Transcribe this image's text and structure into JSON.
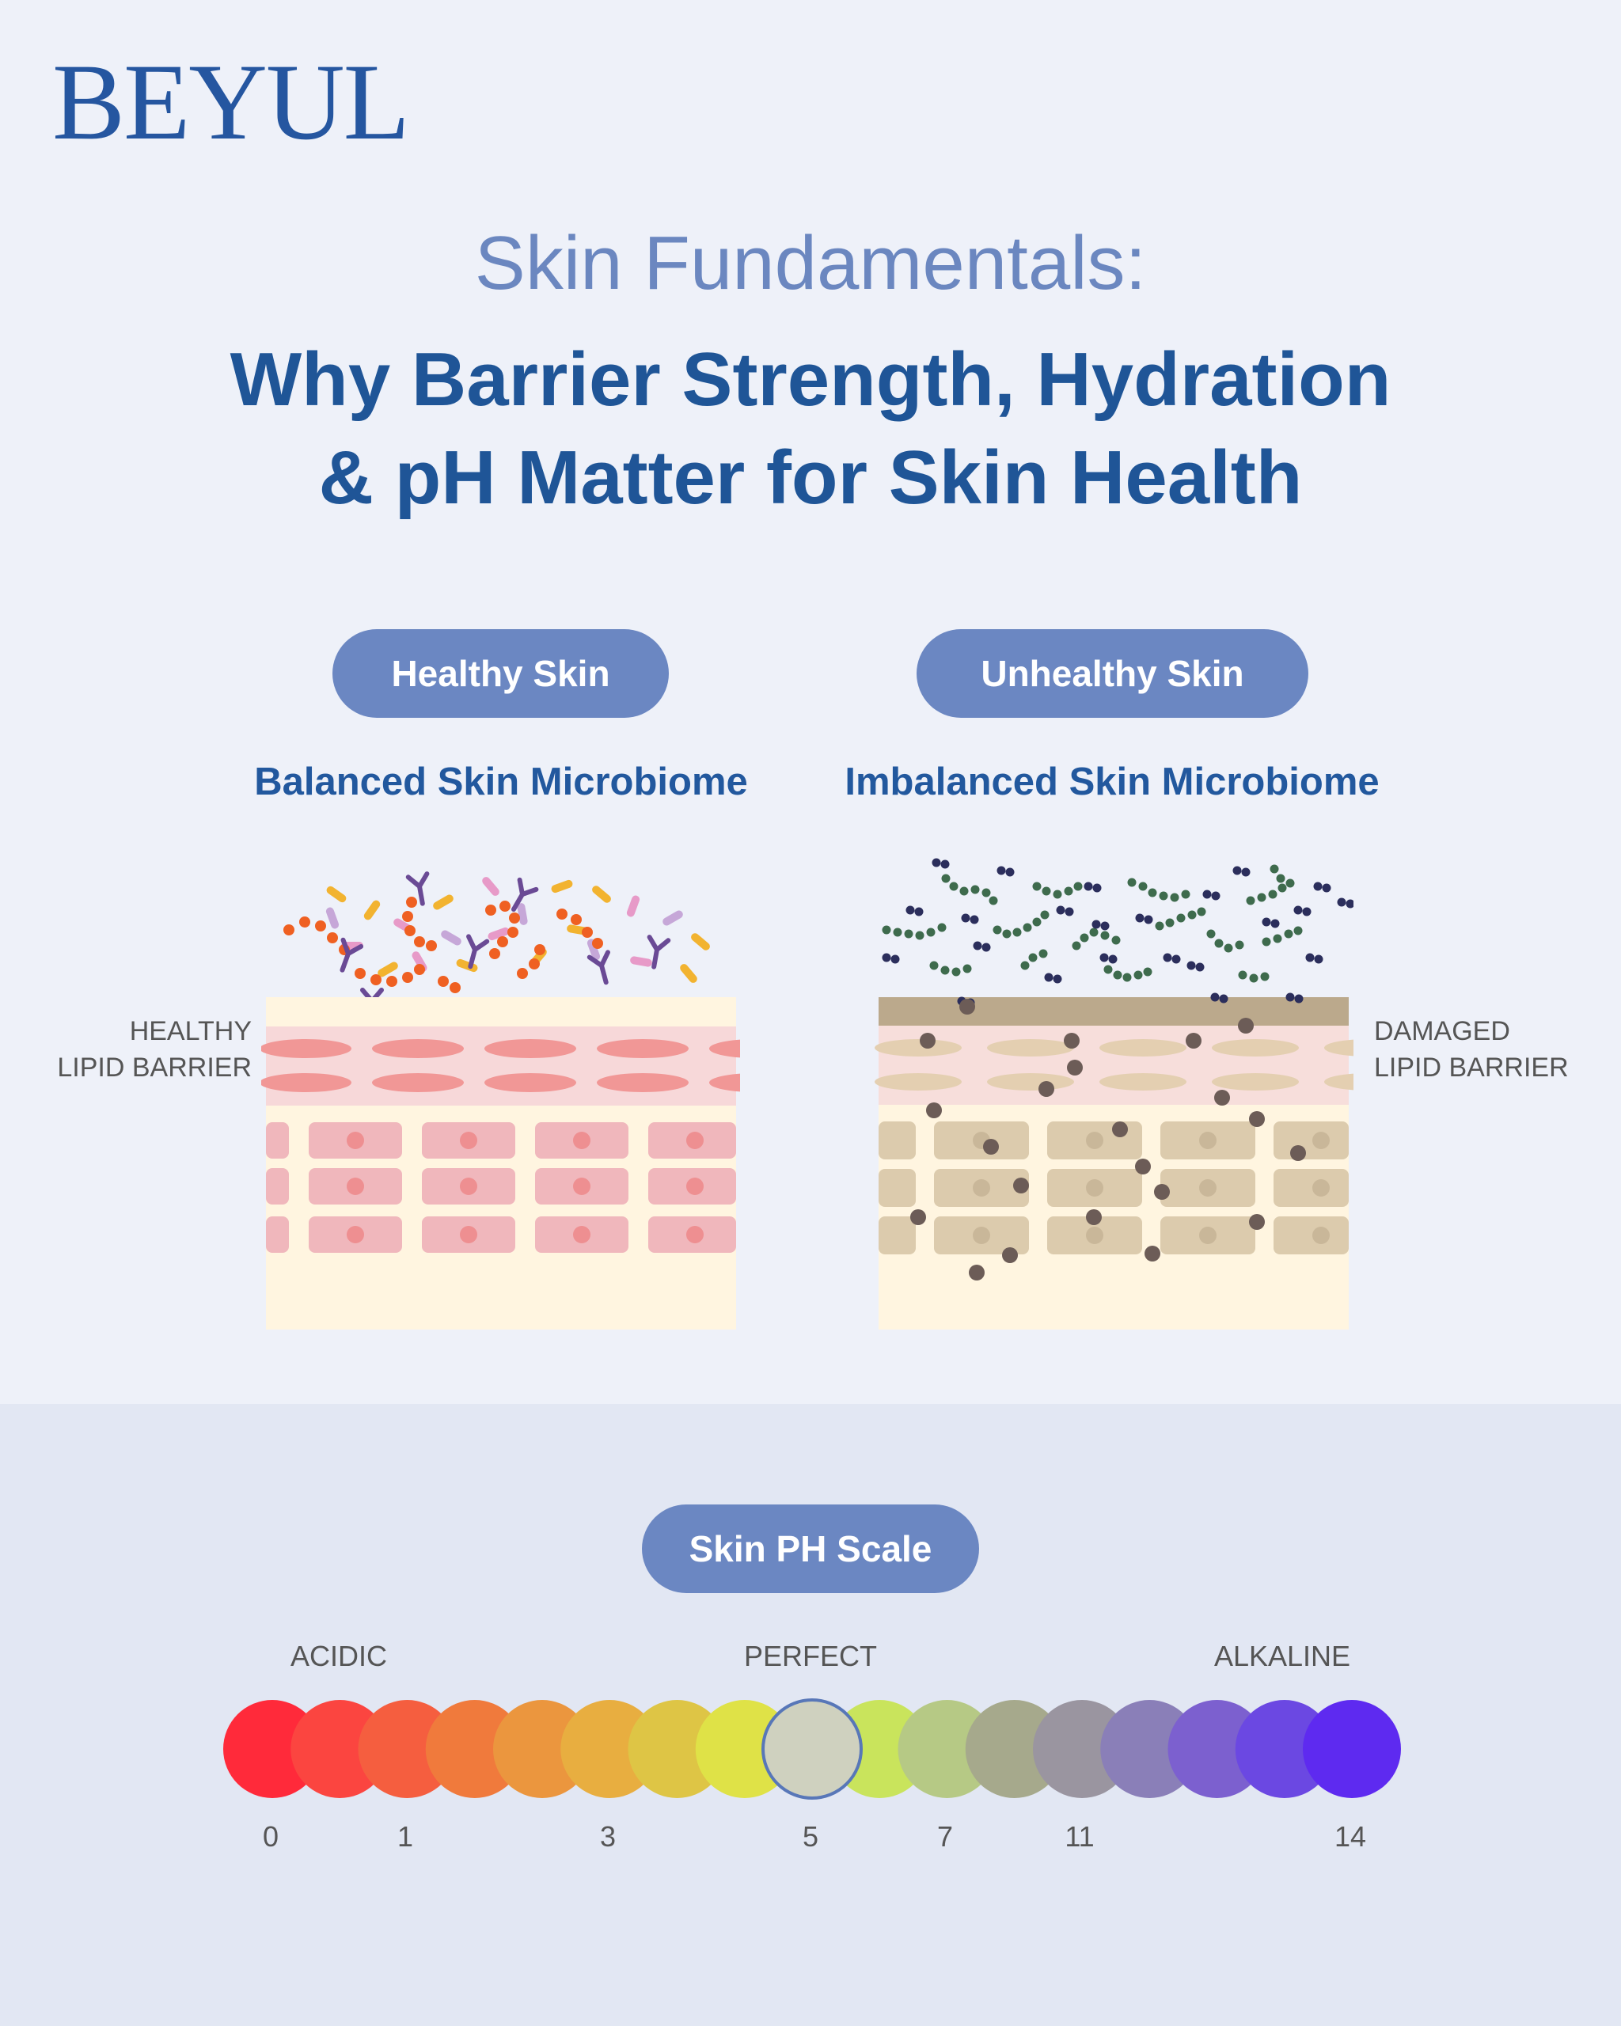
{
  "brand": {
    "logo": "BEYUL"
  },
  "header": {
    "subtitle": "Skin Fundamentals:",
    "title_line1": "Why Barrier Strength, Hydration",
    "title_line2": "& pH Matter for Skin Health"
  },
  "healthy": {
    "pill": "Healthy Skin",
    "label": "Balanced Skin Microbiome",
    "side_label_line1": "HEALTHY",
    "side_label_line2": "LIPID BARRIER"
  },
  "unhealthy": {
    "pill": "Unhealthy Skin",
    "label": "Imbalanced Skin Microbiome",
    "side_label_line1": "DAMAGED",
    "side_label_line2": "LIPID BARRIER"
  },
  "ph_scale": {
    "pill": "Skin PH Scale",
    "acidic": "ACIDIC",
    "perfect": "PERFECT",
    "alkaline": "ALKALINE",
    "ticks": [
      "0",
      "1",
      "3",
      "5",
      "7",
      "11",
      "14"
    ],
    "highlighted_index": 8,
    "colors": [
      "#ff2a3a",
      "#fb4540",
      "#f55e3f",
      "#f07a3c",
      "#eb963e",
      "#e8ae40",
      "#dec545",
      "#dfe247",
      "#cfd1bf",
      "#c9e45c",
      "#b6c985",
      "#a6a98c",
      "#9a95a0",
      "#8a7fb8",
      "#7c60cf",
      "#6b48e2",
      "#5e2af0"
    ]
  },
  "colors": {
    "brand_blue": "#2556a0",
    "pill_blue": "#6b87c2",
    "skin_pink": "#f0b7bc",
    "skin_cream": "#fff5e0",
    "damaged_tan": "#dccbad"
  }
}
